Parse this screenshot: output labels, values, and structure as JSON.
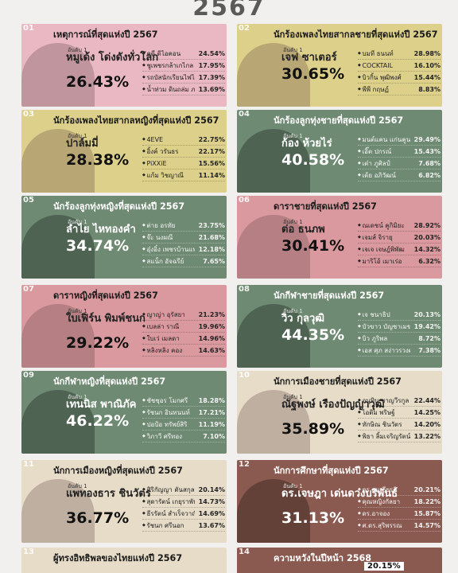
{
  "header": {
    "year": "2567"
  },
  "cards": [
    {
      "num": "01",
      "title": "เหตุการณ์ที่สุดแห่งปี 2567",
      "rank": "อันดับ 1",
      "winner": "หมูเด้ง โด่งดังทั่วโลก",
      "pct": "26.43%",
      "bg": "#e9b8c2",
      "items": [
        {
          "name": "คดี ดิไอคอน",
          "value": "24.54%"
        },
        {
          "name": "ชูเพชรกล้าเกไกล",
          "value": "17.95%"
        },
        {
          "name": "รถบัสนักเรียนไฟไหม้",
          "value": "17.39%"
        },
        {
          "name": "น้ำท่วม ดินถล่ม ภาคเหนือ-ภาคใต้",
          "value": "13.69%"
        }
      ]
    },
    {
      "num": "02",
      "title": "นักร้องเพลงไทยสากลชายที่สุดแห่งปี 2567",
      "rank": "อันดับ 1",
      "winner": "เจฟ ซาเตอร์",
      "pct": "30.65%",
      "bg": "#ddd08a",
      "items": [
        {
          "name": "บมที ธนนท์",
          "value": "28.98%"
        },
        {
          "name": "COCKTAIL",
          "value": "16.10%"
        },
        {
          "name": "บิวกิ้น พุฒิพงศ์",
          "value": "15.44%"
        },
        {
          "name": "พีพี กฤษฏ์",
          "value": "8.83%"
        }
      ]
    },
    {
      "num": "03",
      "title": "นักร้องเพลงไทยสากลหญิงที่สุดแห่งปี 2567",
      "rank": "อันดับ 1",
      "winner": "ปาล์มมี่",
      "pct": "28.38%",
      "bg": "#ddd08a",
      "items": [
        {
          "name": "4EVE",
          "value": "22.75%"
        },
        {
          "name": "อิ้งค์ วรันธร",
          "value": "22.17%"
        },
        {
          "name": "PiXXiE",
          "value": "15.56%"
        },
        {
          "name": "แก้ม วิชญาณี",
          "value": "11.14%"
        }
      ]
    },
    {
      "num": "04",
      "title": "นักร้องลูกทุ่งชายที่สุดแห่งปี 2567",
      "rank": "อันดับ 1",
      "winner": "ก้อง ห้วยไร่",
      "pct": "40.58%",
      "bg": "#6e8a72",
      "dark": true,
      "items": [
        {
          "name": "มนต์แคน แก่นคูน",
          "value": "29.49%"
        },
        {
          "name": "เอิ๊ต ปกรณ์",
          "value": "15.43%"
        },
        {
          "name": "เต๋า ภูศิลป์",
          "value": "7.68%"
        },
        {
          "name": "เต้ย อภิวัฒน์",
          "value": "6.82%"
        }
      ]
    },
    {
      "num": "05",
      "title": "นักร้องลูกทุ่งหญิงที่สุดแห่งปี 2567",
      "rank": "อันดับ 1",
      "winner": "ลำไย ไหทองคำ",
      "pct": "34.74%",
      "bg": "#6e8a72",
      "dark": true,
      "items": [
        {
          "name": "ต่าย อรทัย",
          "value": "23.75%"
        },
        {
          "name": "จ๊ะ นงผณี",
          "value": "21.68%"
        },
        {
          "name": "อุ๋งอิ๋ง เพชรบ้านแพง",
          "value": "12.18%"
        },
        {
          "name": "สแน็ก อัจฉรีย์",
          "value": "7.65%"
        }
      ]
    },
    {
      "num": "06",
      "title": "ดาราชายที่สุดแห่งปี 2567",
      "rank": "อันดับ 1",
      "winner": "ต่อ ธนภพ",
      "pct": "30.41%",
      "bg": "#d9999e",
      "items": [
        {
          "name": "ณเดชน์ คูกิมิยะ",
          "value": "28.92%"
        },
        {
          "name": "เจมส์ จิรายุ",
          "value": "20.03%"
        },
        {
          "name": "เจเจ เจษฎ์พิพัฒ",
          "value": "14.32%"
        },
        {
          "name": "มาริโอ้ เมาเร่อ",
          "value": "6.32%"
        }
      ]
    },
    {
      "num": "07",
      "title": "ดาราหญิงที่สุดแห่งปี 2567",
      "rank": "อันดับ 1",
      "winner": "ใบเฟิร์น พิมพ์ชนก",
      "pct": "29.22%",
      "bg": "#d9999e",
      "items": [
        {
          "name": "ญาญ่า อุรัสยา",
          "value": "21.23%"
        },
        {
          "name": "เบลล่า ราณี",
          "value": "19.96%"
        },
        {
          "name": "ใบเว่ เมลดา",
          "value": "14.96%"
        },
        {
          "name": "หลิงหลิง คอง",
          "value": "14.63%"
        }
      ]
    },
    {
      "num": "08",
      "title": "นักกีฬาชายที่สุดแห่งปี 2567",
      "rank": "อันดับ 1",
      "winner": "วิว กุลวุฒิ",
      "pct": "44.35%",
      "bg": "#6e8a72",
      "dark": true,
      "items": [
        {
          "name": "เจ ชนาธิป",
          "value": "20.13%"
        },
        {
          "name": "บัวขาว บัญชาเมฆ",
          "value": "19.42%"
        },
        {
          "name": "บิว ภูริพล",
          "value": "8.72%"
        },
        {
          "name": "เอส ศุภ สง่าวรวงศ์",
          "value": "7.38%"
        }
      ]
    },
    {
      "num": "09",
      "title": "นักกีฬาหญิงที่สุดแห่งปี 2567",
      "rank": "อันดับ 1",
      "winner": "เทนนิส พาณิภัค",
      "pct": "46.22%",
      "bg": "#6e8a72",
      "dark": true,
      "items": [
        {
          "name": "ชัชชุอร โมกศรี",
          "value": "18.28%"
        },
        {
          "name": "รัชนก อินทนนท์",
          "value": "17.21%"
        },
        {
          "name": "ปอป้อ ทรัพย์สิริ",
          "value": "11.19%"
        },
        {
          "name": "วิภาวี ศรีทอง",
          "value": "7.10%"
        }
      ]
    },
    {
      "num": "10",
      "title": "นักการเมืองชายที่สุดแห่งปี 2567",
      "rank": "อันดับ 1",
      "winner": "ณัฐพงษ์ เรืองปัญญาวุฒิ",
      "pct": "35.89%",
      "bg": "#e6dcc8",
      "items": [
        {
          "name": "อนุทิน ชาญวีรกูล",
          "value": "22.44%"
        },
        {
          "name": "ไอติม พริษฐ์",
          "value": "14.25%"
        },
        {
          "name": "ทักษิณ ชินวัตร",
          "value": "14.20%"
        },
        {
          "name": "พิธา ลิ้มเจริญรัตน์",
          "value": "13.22%"
        }
      ]
    },
    {
      "num": "11",
      "title": "นักการเมืองหญิงที่สุดแห่งปี 2567",
      "rank": "อันดับ 1",
      "winner": "แพทองธาร ชินวัตร",
      "pct": "36.77%",
      "bg": "#e6dcc8",
      "items": [
        {
          "name": "ศิริกัญญา ตันสกุล",
          "value": "20.14%"
        },
        {
          "name": "สุดารัตน์ เกยุราพันธุ์",
          "value": "14.73%"
        },
        {
          "name": "ธีรรัตน์ สำเร็จวาณิชย์",
          "value": "14.69%"
        },
        {
          "name": "รัชนก ศรีนอก",
          "value": "13.67%"
        }
      ]
    },
    {
      "num": "12",
      "title": "นักการศึกษาที่สุดแห่งปี 2567",
      "rank": "อันดับ 1",
      "winner": "ดร.เจษฎา เด่นดวงบริพันธ์",
      "pct": "31.13%",
      "bg": "#8a5a50",
      "dark": true,
      "items": [
        {
          "name": "ดร.สมเกียรติ",
          "value": "20.21%"
        },
        {
          "name": "คุณหญิงกัลยา",
          "value": "18.22%"
        },
        {
          "name": "ดร.อาจอง",
          "value": "15.87%"
        },
        {
          "name": "ศ.ดร.สุริพรรณ",
          "value": "14.57%"
        }
      ]
    },
    {
      "num": "13",
      "title": "ผู้ทรงอิทธิพลของไทยแห่งปี 2567",
      "rank": "",
      "winner": "",
      "pct": "",
      "bg": "#e6dcc8",
      "items": []
    },
    {
      "num": "14",
      "title": "ความหวังในปีหน้า 2568",
      "rank": "",
      "winner": "",
      "pct": "20.15%",
      "bg": "#8a5a50",
      "dark": true,
      "items": []
    }
  ]
}
